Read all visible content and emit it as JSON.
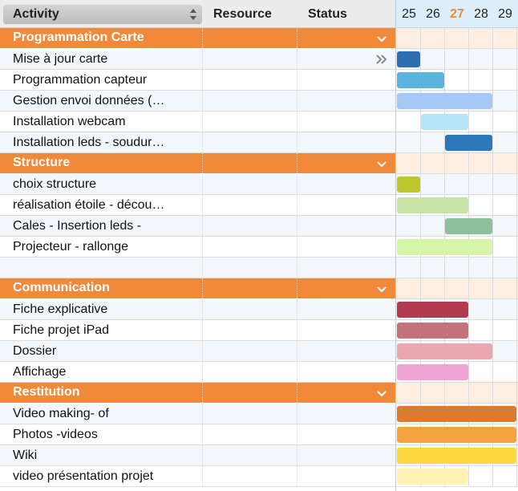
{
  "header": {
    "activity_label": "Activity",
    "resource_label": "Resource",
    "status_label": "Status"
  },
  "days": [
    {
      "label": "25",
      "today": false
    },
    {
      "label": "26",
      "today": false
    },
    {
      "label": "27",
      "today": true
    },
    {
      "label": "28",
      "today": false
    },
    {
      "label": "29",
      "today": false
    }
  ],
  "colors": {
    "group_bg": "#f08a3a",
    "group_gantt_bg": "#fdeee1",
    "today": "#f08a3a"
  },
  "groups": [
    {
      "name": "Programmation Carte",
      "tasks": [
        {
          "name": "Mise à jour carte",
          "start_day": 25,
          "end_day": 25,
          "color": "#2d6fb0",
          "icon": "double-chevron-right-icon"
        },
        {
          "name": "Programmation capteur",
          "start_day": 25,
          "end_day": 26,
          "color": "#5ab4de"
        },
        {
          "name": "Gestion envoi données (…",
          "start_day": 25,
          "end_day": 28,
          "color": "#a5c8f5"
        },
        {
          "name": "Installation webcam",
          "start_day": 26,
          "end_day": 27,
          "color": "#b8e6f9"
        },
        {
          "name": "Installation leds - soudur…",
          "start_day": 27,
          "end_day": 28,
          "color": "#2e77b8"
        }
      ]
    },
    {
      "name": "Structure",
      "tasks": [
        {
          "name": "choix structure",
          "start_day": 25,
          "end_day": 25,
          "color": "#bcc72d"
        },
        {
          "name": "réalisation étoile - décou…",
          "start_day": 25,
          "end_day": 27,
          "color": "#c7e3a6"
        },
        {
          "name": "Cales - Insertion leds -",
          "start_day": 27,
          "end_day": 28,
          "color": "#8dbf9e"
        },
        {
          "name": "Projecteur - rallonge",
          "start_day": 25,
          "end_day": 28,
          "color": "#d6f5a9"
        },
        {
          "name": "",
          "start_day": null,
          "end_day": null,
          "color": ""
        }
      ]
    },
    {
      "name": "Communication",
      "tasks": [
        {
          "name": "Fiche explicative",
          "start_day": 25,
          "end_day": 27,
          "color": "#b23a52"
        },
        {
          "name": "Fiche projet iPad",
          "start_day": 25,
          "end_day": 27,
          "color": "#c4727c"
        },
        {
          "name": "Dossier",
          "start_day": 25,
          "end_day": 28,
          "color": "#eba7b0"
        },
        {
          "name": "Affichage",
          "start_day": 25,
          "end_day": 27,
          "color": "#f0a3d5"
        }
      ]
    },
    {
      "name": "Restitution",
      "tasks": [
        {
          "name": "Video making- of",
          "start_day": 25,
          "end_day": 29,
          "color": "#dc7b30"
        },
        {
          "name": "Photos -videos",
          "start_day": 25,
          "end_day": 29,
          "color": "#f5a340"
        },
        {
          "name": "Wiki",
          "start_day": 25,
          "end_day": 29,
          "color": "#ffd740"
        },
        {
          "name": "video présentation projet",
          "start_day": 25,
          "end_day": 27,
          "color": "#fff3b3"
        }
      ]
    }
  ]
}
